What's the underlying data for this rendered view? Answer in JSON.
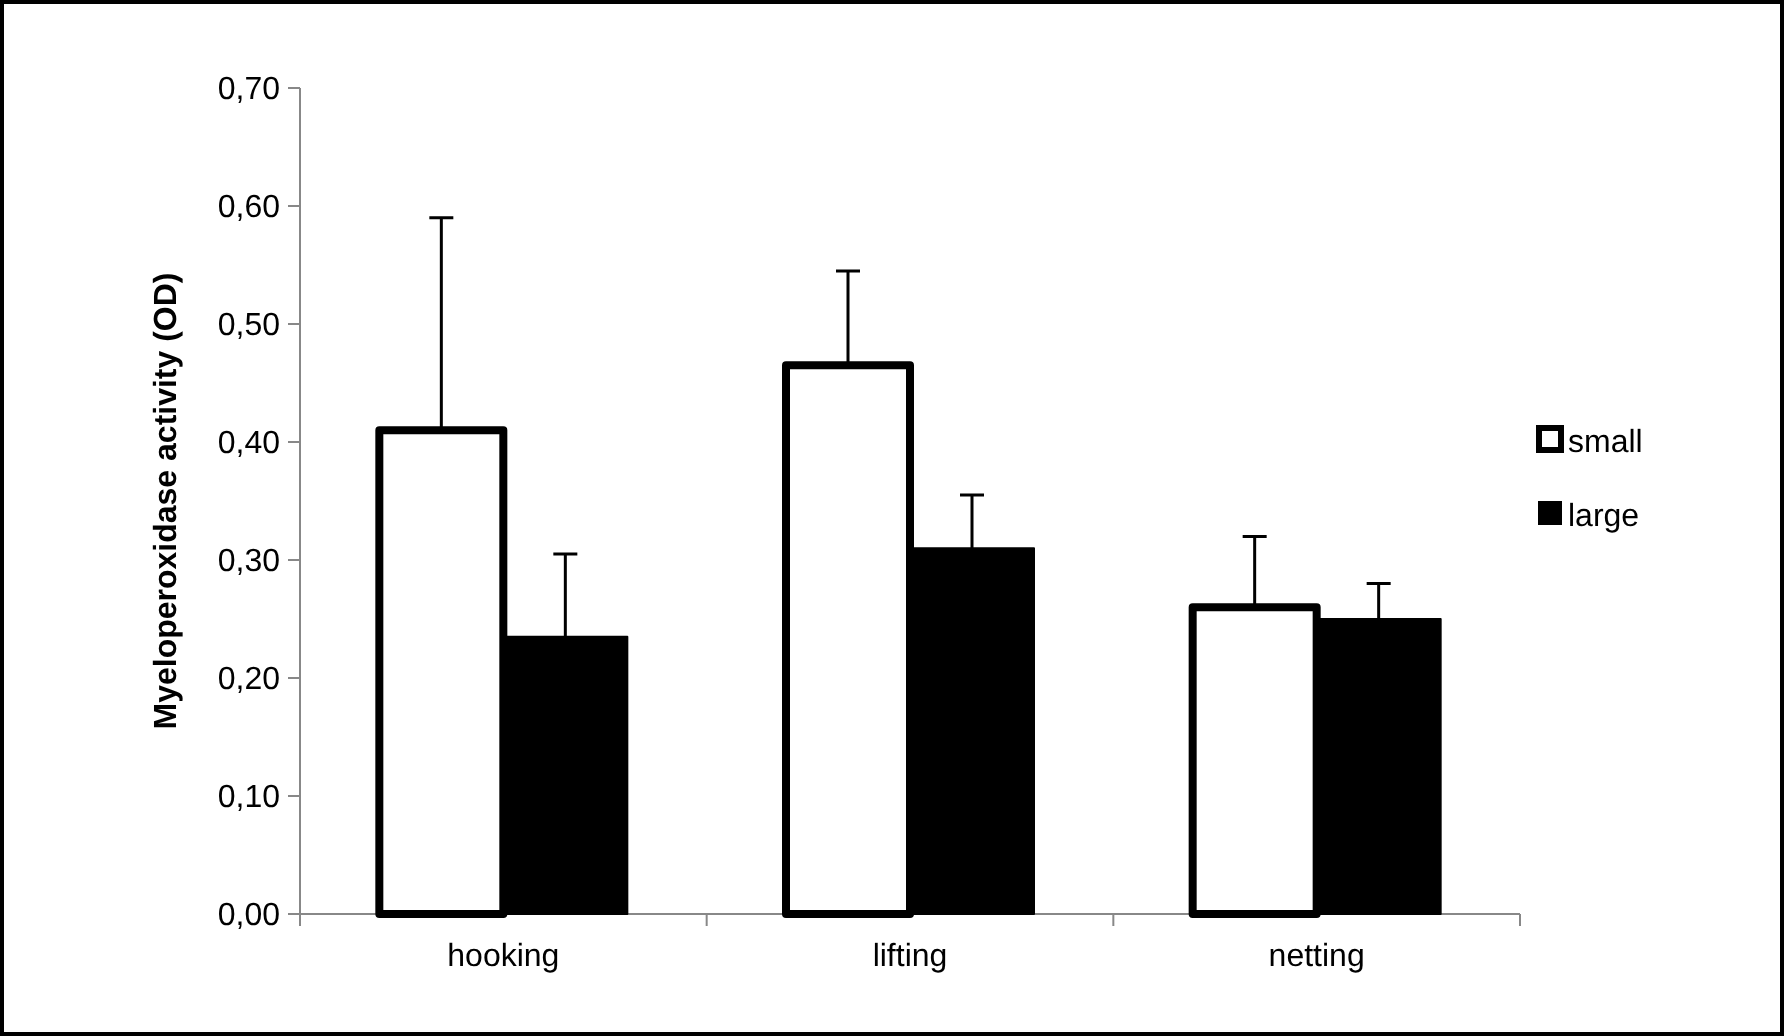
{
  "chart_data": {
    "type": "bar",
    "ylabel": "Myeloperoxidase activity (OD)",
    "categories": [
      "hooking",
      "lifting",
      "netting"
    ],
    "series": [
      {
        "name": "small",
        "color": "#ffffff",
        "values": [
          0.41,
          0.465,
          0.26
        ],
        "errors": [
          [
            0.41,
            0.59
          ],
          [
            0.465,
            0.545
          ],
          [
            0.26,
            0.32
          ]
        ]
      },
      {
        "name": "large",
        "color": "#000000",
        "values": [
          0.235,
          0.31,
          0.25
        ],
        "errors": [
          [
            0.235,
            0.305
          ],
          [
            0.31,
            0.355
          ],
          [
            0.25,
            0.28
          ]
        ]
      }
    ],
    "ylim": [
      0,
      0.7
    ],
    "yticks": [
      {
        "value": 0,
        "label": "0,00"
      },
      {
        "value": 0.1,
        "label": "0,10"
      },
      {
        "value": 0.2,
        "label": "0,20"
      },
      {
        "value": 0.3,
        "label": "0,30"
      },
      {
        "value": 0.4,
        "label": "0,40"
      },
      {
        "value": 0.5,
        "label": "0,50"
      },
      {
        "value": 0.6,
        "label": "0,60"
      },
      {
        "value": 0.7,
        "label": "0,70"
      }
    ],
    "grid": false,
    "legend": "right"
  }
}
